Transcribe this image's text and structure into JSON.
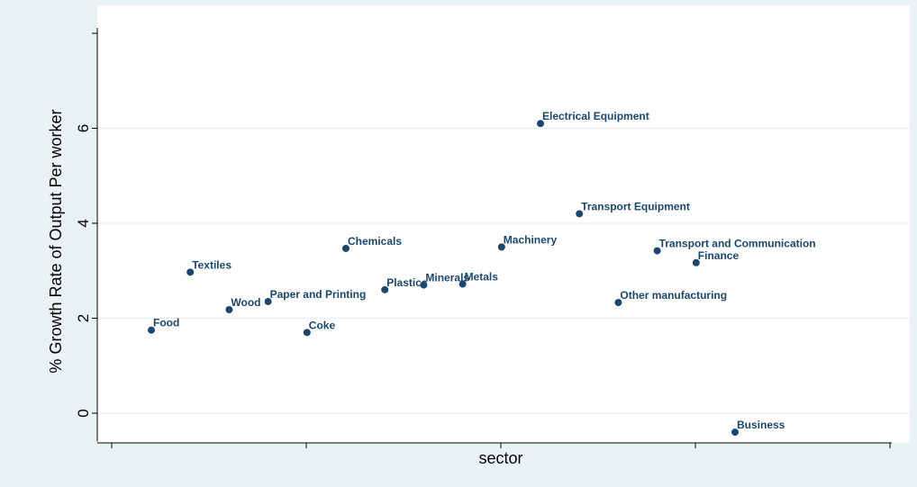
{
  "chart_data": {
    "type": "scatter",
    "title": "",
    "xlabel": "sector",
    "ylabel": "% Growth Rate of Output Per worker",
    "ylim": [
      -0.5,
      8.0
    ],
    "yticks": [
      "0",
      "2",
      "4",
      "6"
    ],
    "ytick_values": [
      0,
      2,
      4,
      6
    ],
    "xlim": [
      0,
      20
    ],
    "xticks_unlabeled": [
      0,
      5,
      10,
      15,
      20
    ],
    "grid": true,
    "legend": "none",
    "colors": {
      "marker": "#1a476f",
      "grid": "#eaf2f3",
      "plot_bg": "#ffffff",
      "outer_bg": "#eaf2f3",
      "label": "#1a476f"
    },
    "points": [
      {
        "label": "Food",
        "x": 1,
        "y": 1.75
      },
      {
        "label": "Textiles",
        "x": 2,
        "y": 2.97
      },
      {
        "label": "Wood",
        "x": 3,
        "y": 2.18
      },
      {
        "label": "Paper and Printing",
        "x": 4,
        "y": 2.35
      },
      {
        "label": "Coke",
        "x": 5,
        "y": 1.7
      },
      {
        "label": "Chemicals",
        "x": 6,
        "y": 3.47
      },
      {
        "label": "Plastics",
        "x": 7,
        "y": 2.6
      },
      {
        "label": "Minerals",
        "x": 8,
        "y": 2.7
      },
      {
        "label": "Metals",
        "x": 9,
        "y": 2.72
      },
      {
        "label": "Machinery",
        "x": 10,
        "y": 3.5
      },
      {
        "label": "Electrical Equipment",
        "x": 11,
        "y": 6.1
      },
      {
        "label": "Transport Equipment",
        "x": 12,
        "y": 4.2
      },
      {
        "label": "Other manufacturing",
        "x": 13,
        "y": 2.33
      },
      {
        "label": "Transport and Communication",
        "x": 14,
        "y": 3.42
      },
      {
        "label": "Finance",
        "x": 15,
        "y": 3.17
      },
      {
        "label": "Business",
        "x": 16,
        "y": -0.4
      }
    ]
  }
}
